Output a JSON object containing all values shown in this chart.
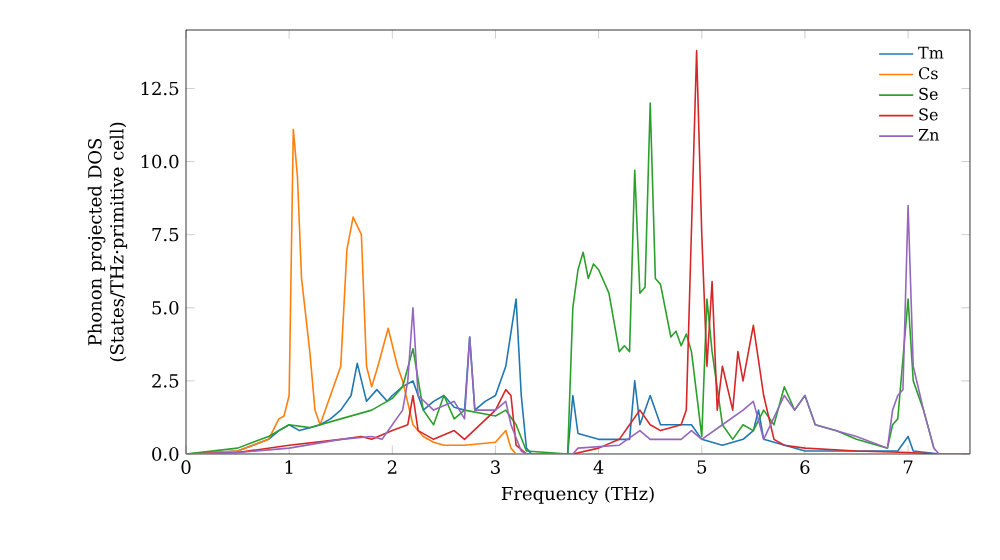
{
  "chart_data": {
    "type": "line",
    "xlabel": "Frequency (THz)",
    "ylabel": "Phonon projected DOS (States/THz·primitive cell)",
    "xlim": [
      0,
      7.6
    ],
    "ylim": [
      0,
      14.5
    ],
    "xticks": [
      0,
      1,
      2,
      3,
      4,
      5,
      6,
      7
    ],
    "yticks": [
      {
        "value": 0,
        "label": "0.0"
      },
      2.5,
      {
        "value": 5,
        "label": "5.0"
      },
      7.5,
      {
        "value": 10,
        "label": "10.0"
      },
      12.5
    ],
    "legend": "top right",
    "series": [
      {
        "name": "Tm",
        "color": "#1f77b4",
        "x": [
          0,
          0.5,
          0.8,
          0.9,
          1.0,
          1.1,
          1.2,
          1.3,
          1.4,
          1.5,
          1.6,
          1.66,
          1.75,
          1.85,
          1.95,
          2.0,
          2.1,
          2.2,
          2.3,
          2.4,
          2.5,
          2.6,
          2.7,
          2.75,
          2.8,
          2.9,
          3.0,
          3.1,
          3.2,
          3.25,
          3.3,
          3.35,
          3.7,
          3.75,
          3.8,
          4.0,
          4.3,
          4.35,
          4.4,
          4.5,
          4.6,
          4.8,
          4.9,
          5.0,
          5.2,
          5.4,
          5.5,
          5.55,
          5.6,
          5.8,
          6.0,
          6.9,
          7.0,
          7.05,
          7.3,
          7.6
        ],
        "values": [
          0,
          0.1,
          0.5,
          0.8,
          1.0,
          0.8,
          0.9,
          1.0,
          1.2,
          1.5,
          2.0,
          3.1,
          1.8,
          2.2,
          1.8,
          2.0,
          2.3,
          2.5,
          1.5,
          1.8,
          2.0,
          1.6,
          1.5,
          4.0,
          1.5,
          1.8,
          2.0,
          3.0,
          5.3,
          2.0,
          0.2,
          0,
          0,
          2.0,
          0.7,
          0.5,
          0.5,
          2.5,
          1.0,
          2.0,
          1.0,
          1.0,
          1.0,
          0.5,
          0.3,
          0.5,
          0.8,
          1.5,
          0.5,
          0.3,
          0.1,
          0.1,
          0.6,
          0.1,
          0,
          0
        ]
      },
      {
        "name": "Cs",
        "color": "#ff7f0e",
        "x": [
          0,
          0.5,
          0.8,
          0.9,
          0.95,
          1.0,
          1.04,
          1.08,
          1.12,
          1.2,
          1.25,
          1.3,
          1.4,
          1.5,
          1.56,
          1.62,
          1.7,
          1.75,
          1.8,
          1.86,
          1.96,
          2.05,
          2.1,
          2.2,
          2.3,
          2.4,
          2.5,
          2.7,
          3.0,
          3.1,
          3.15,
          3.2,
          3.6,
          7.6
        ],
        "values": [
          0,
          0.1,
          0.5,
          1.2,
          1.3,
          2.0,
          11.1,
          9.5,
          6.0,
          3.5,
          1.5,
          1.0,
          2.0,
          3.0,
          7.0,
          8.1,
          7.5,
          3.0,
          2.3,
          3.0,
          4.3,
          3.0,
          2.5,
          1.0,
          0.6,
          0.4,
          0.3,
          0.3,
          0.4,
          0.8,
          0.2,
          0,
          0,
          0
        ]
      },
      {
        "name": "Se",
        "color": "#2ca02c",
        "x": [
          0,
          0.5,
          0.8,
          1.0,
          1.2,
          1.5,
          1.8,
          2.0,
          2.1,
          2.2,
          2.3,
          2.4,
          2.5,
          2.6,
          2.7,
          3.0,
          3.1,
          3.2,
          3.3,
          3.7,
          3.75,
          3.8,
          3.85,
          3.9,
          3.95,
          4.0,
          4.1,
          4.2,
          4.25,
          4.3,
          4.35,
          4.4,
          4.45,
          4.5,
          4.55,
          4.6,
          4.7,
          4.75,
          4.8,
          4.85,
          4.9,
          5.0,
          5.05,
          5.1,
          5.2,
          5.3,
          5.4,
          5.5,
          5.6,
          5.7,
          5.8,
          5.9,
          6.0,
          6.1,
          6.3,
          6.5,
          6.8,
          6.85,
          6.9,
          7.0,
          7.05,
          7.15,
          7.25
        ],
        "values": [
          0,
          0.2,
          0.6,
          1.0,
          0.9,
          1.2,
          1.5,
          1.9,
          2.3,
          3.6,
          1.5,
          1.0,
          2.0,
          1.2,
          1.5,
          1.3,
          1.5,
          1.0,
          0.1,
          0,
          5.0,
          6.3,
          6.9,
          6.0,
          6.5,
          6.3,
          5.5,
          3.5,
          3.7,
          3.5,
          9.7,
          5.5,
          5.7,
          12.0,
          6.0,
          5.8,
          4.0,
          4.2,
          3.7,
          4.1,
          3.5,
          0.6,
          5.3,
          3.5,
          1.0,
          0.5,
          1.0,
          0.8,
          1.5,
          1.0,
          2.3,
          1.5,
          2.0,
          1.0,
          0.8,
          0.5,
          0.2,
          1.0,
          1.2,
          5.3,
          2.5,
          1.5,
          0.2
        ]
      },
      {
        "name": "Se",
        "color": "#d62728",
        "x": [
          0,
          0.5,
          1.0,
          1.5,
          1.7,
          1.8,
          2.0,
          2.15,
          2.2,
          2.25,
          2.4,
          2.6,
          2.7,
          3.0,
          3.1,
          3.15,
          3.2,
          3.3,
          3.75,
          4.0,
          4.2,
          4.3,
          4.4,
          4.5,
          4.6,
          4.8,
          4.85,
          4.95,
          5.0,
          5.05,
          5.1,
          5.15,
          5.2,
          5.3,
          5.35,
          5.4,
          5.5,
          5.6,
          5.7,
          5.8,
          6.0,
          6.5,
          7.0,
          7.3,
          7.6
        ],
        "values": [
          0,
          0.05,
          0.3,
          0.5,
          0.6,
          0.5,
          0.8,
          1.0,
          2.0,
          0.8,
          0.5,
          0.8,
          0.5,
          1.5,
          2.2,
          2.0,
          0.3,
          0,
          0,
          0.2,
          0.5,
          1.0,
          1.5,
          1.0,
          0.8,
          1.0,
          1.5,
          13.8,
          7.5,
          3.0,
          5.9,
          1.5,
          3.0,
          1.5,
          3.5,
          2.5,
          4.4,
          2.0,
          0.5,
          0.3,
          0.2,
          0.1,
          0.05,
          0,
          0
        ]
      },
      {
        "name": "Zn",
        "color": "#9467bd",
        "x": [
          0,
          0.5,
          1.0,
          1.5,
          1.8,
          1.9,
          2.0,
          2.1,
          2.15,
          2.2,
          2.25,
          2.4,
          2.6,
          2.7,
          2.75,
          2.8,
          3.0,
          3.1,
          3.15,
          3.25,
          3.3,
          3.75,
          3.8,
          4.2,
          4.4,
          4.5,
          4.8,
          4.9,
          5.0,
          5.2,
          5.4,
          5.5,
          5.6,
          5.8,
          5.9,
          6.0,
          6.1,
          6.3,
          6.5,
          6.8,
          6.85,
          6.9,
          6.95,
          7.0,
          7.05,
          7.15,
          7.25,
          7.3,
          7.6
        ],
        "values": [
          0,
          0.05,
          0.2,
          0.5,
          0.6,
          0.5,
          1.0,
          1.5,
          2.5,
          5.0,
          2.0,
          1.5,
          1.8,
          1.2,
          4.0,
          1.5,
          1.5,
          1.8,
          1.0,
          0.1,
          0,
          0,
          0.2,
          0.3,
          0.8,
          0.5,
          0.5,
          0.8,
          0.5,
          1.0,
          1.5,
          1.8,
          0.5,
          2.0,
          1.5,
          2.0,
          1.0,
          0.8,
          0.6,
          0.2,
          1.5,
          2.0,
          2.2,
          8.5,
          3.0,
          1.5,
          0.2,
          0,
          0
        ]
      }
    ]
  }
}
